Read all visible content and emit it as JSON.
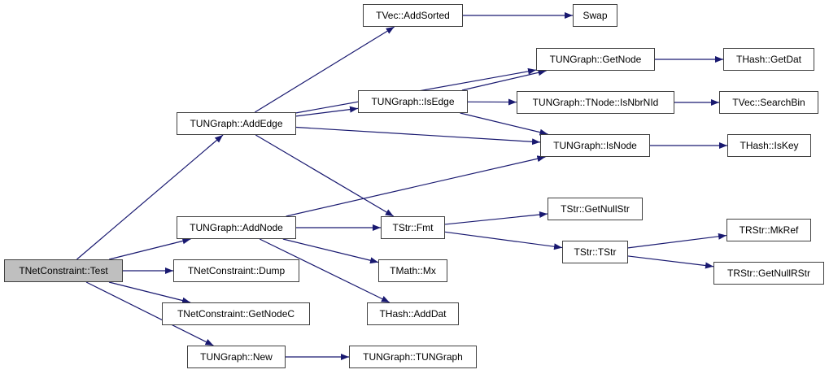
{
  "colors": {
    "edge": "#191970",
    "root_fill": "#bfbfbf",
    "node_fill": "#ffffff",
    "node_border": "#404040"
  },
  "nodes": [
    {
      "id": "test",
      "label": "TNetConstraint::Test",
      "root": true
    },
    {
      "id": "addedge",
      "label": "TUNGraph::AddEdge"
    },
    {
      "id": "addnode",
      "label": "TUNGraph::AddNode"
    },
    {
      "id": "dump",
      "label": "TNetConstraint::Dump"
    },
    {
      "id": "getnodec",
      "label": "TNetConstraint::GetNodeC"
    },
    {
      "id": "new",
      "label": "TUNGraph::New"
    },
    {
      "id": "addsorted",
      "label": "TVec::AddSorted"
    },
    {
      "id": "isedge",
      "label": "TUNGraph::IsEdge"
    },
    {
      "id": "fmt",
      "label": "TStr::Fmt"
    },
    {
      "id": "mx",
      "label": "TMath::Mx"
    },
    {
      "id": "adddat",
      "label": "THash::AddDat"
    },
    {
      "id": "tungraph",
      "label": "TUNGraph::TUNGraph"
    },
    {
      "id": "swap",
      "label": "Swap"
    },
    {
      "id": "getnode",
      "label": "TUNGraph::GetNode"
    },
    {
      "id": "isnbrnid",
      "label": "TUNGraph::TNode::IsNbrNId"
    },
    {
      "id": "isnode",
      "label": "TUNGraph::IsNode"
    },
    {
      "id": "getnullstr",
      "label": "TStr::GetNullStr"
    },
    {
      "id": "tstr",
      "label": "TStr::TStr"
    },
    {
      "id": "getdat",
      "label": "THash::GetDat"
    },
    {
      "id": "searchbin",
      "label": "TVec::SearchBin"
    },
    {
      "id": "iskey",
      "label": "THash::IsKey"
    },
    {
      "id": "mkref",
      "label": "TRStr::MkRef"
    },
    {
      "id": "getnullrstr",
      "label": "TRStr::GetNullRStr"
    }
  ],
  "edges": [
    [
      "test",
      "addedge"
    ],
    [
      "test",
      "addnode"
    ],
    [
      "test",
      "dump"
    ],
    [
      "test",
      "getnodec"
    ],
    [
      "test",
      "new"
    ],
    [
      "addedge",
      "addsorted"
    ],
    [
      "addedge",
      "getnode"
    ],
    [
      "addedge",
      "isedge"
    ],
    [
      "addedge",
      "isnode"
    ],
    [
      "addedge",
      "fmt"
    ],
    [
      "addnode",
      "isnode"
    ],
    [
      "addnode",
      "fmt"
    ],
    [
      "addnode",
      "mx"
    ],
    [
      "addnode",
      "adddat"
    ],
    [
      "new",
      "tungraph"
    ],
    [
      "addsorted",
      "swap"
    ],
    [
      "isedge",
      "getnode"
    ],
    [
      "isedge",
      "isnbrnid"
    ],
    [
      "isedge",
      "isnode"
    ],
    [
      "fmt",
      "getnullstr"
    ],
    [
      "fmt",
      "tstr"
    ],
    [
      "getnode",
      "getdat"
    ],
    [
      "isnbrnid",
      "searchbin"
    ],
    [
      "isnode",
      "iskey"
    ],
    [
      "tstr",
      "mkref"
    ],
    [
      "tstr",
      "getnullrstr"
    ]
  ]
}
